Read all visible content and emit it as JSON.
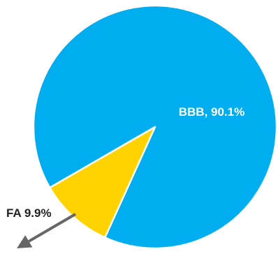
{
  "chart_data": {
    "type": "pie",
    "title": "",
    "slices": [
      {
        "label": "BBB",
        "value": 90.1,
        "display": "BBB, 90.1%",
        "color": "#00aeef",
        "label_color": "#ffffff"
      },
      {
        "label": "FA",
        "value": 9.9,
        "display": "FA 9.9%",
        "color": "#ffd200",
        "label_color": "#222222"
      }
    ],
    "colors": {
      "arrow": "#666666",
      "slice_border": "#ffffff"
    }
  }
}
